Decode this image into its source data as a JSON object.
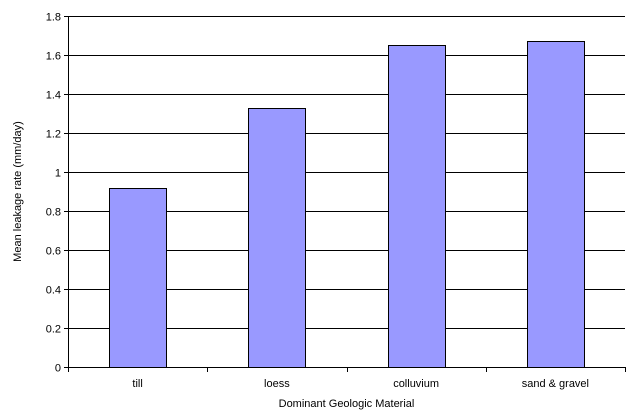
{
  "chart_data": {
    "type": "bar",
    "title": "",
    "xlabel": "Dominant Geologic Material",
    "ylabel": "Mean leakage rate (mm/day)",
    "categories": [
      "till",
      "loess",
      "colluvium",
      "sand & gravel"
    ],
    "values": [
      0.92,
      1.33,
      1.65,
      1.67
    ],
    "ylim": [
      0,
      1.8
    ],
    "yticks": [
      0,
      0.2,
      0.4,
      0.6,
      0.8,
      1,
      1.2,
      1.4,
      1.6,
      1.8
    ],
    "ytick_labels": [
      "0",
      "0.2",
      "0.4",
      "0.6",
      "0.8",
      "1",
      "1.2",
      "1.4",
      "1.6",
      "1.8"
    ],
    "grid": "horizontal",
    "legend": "none",
    "colors": {
      "bar_fill": "#9999ff",
      "bar_stroke": "#000000",
      "grid": "#000000",
      "axis": "#000000"
    }
  }
}
